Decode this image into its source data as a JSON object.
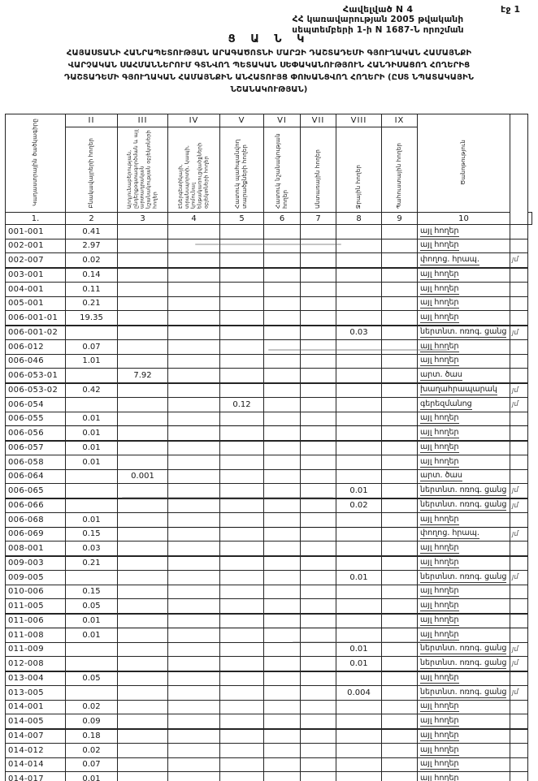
{
  "header": {
    "appendix": "Հավելված N 4",
    "page_no": "էջ 1",
    "decree_line1": "ՀՀ կառավարության 2005 թվականի",
    "decree_line2": "սեպտեմբերի 1-ի N 1687-Ն որոշման",
    "list_word": "Ց Ա Ն Կ",
    "title_line1": "ՀԱՅԱՍՏԱՆԻ ՀԱՆՐԱՊԵՏՈՒԹՅԱՆ ԱՐԱԳԱԾՈՏՆԻ ՄԱՐԶԻ  ԴԱՇՏԱԴԵՄԻ ԳՅՈՒՂԱԿԱՆ ՀԱՄԱՅՆՔԻ",
    "title_line2": "ՎԱՐՉԱԿԱՆ ՍԱՀՄԱՆՆԵՐՈՒՄ  ԳՏՆՎՈՂ  ՊԵՏԱԿԱՆ ՍԵՓԱԿԱՆՈՒԹՅՈՒՆ  ՀԱՆԴԻՍԱՑՈՂ ՀՈՂԵՐԻՑ",
    "title_line3": "ԴԱՇՏԱԴԵՄԻ ԳՅՈՒՂԱԿԱՆ ՀԱՄԱՅՆՔԻՆ ԱՆՀԱՏՈՒՅՑ ՓՈԽԱՆՑՎՈՂ ՀՈՂԵՐԻ  (ԸՍՏ ՆՊԱՏԱԿԱՅԻՆ",
    "title_line4": "ՆՇԱՆԱԿՈՒԹՅԱՆ)"
  },
  "table": {
    "numerals": [
      "II",
      "III",
      "IV",
      "V",
      "VI",
      "VII",
      "VIII",
      "IX"
    ],
    "code_header": "Կադաստրային ծածկագիրը",
    "col_headers": [
      "Բնակավայրերի հողեր",
      "Արդյունաբերության, ընդերքօգտագործման և այլ արտադրական նշանակության օբյեկտների հողեր",
      "Էներգետիկայի, տրանսպորտի, կապի, կոմունալ ենթակառուցվածքների օբյեկտների հողեր",
      "Հատուկ պահպանվող տարածքների հողեր",
      "Հատուկ նշանակության հողեր",
      "Անտառային հողեր",
      "Ջրային հողեր",
      "Պահուստային հողեր"
    ],
    "note_header": "Ծանոթություն",
    "number_row": [
      "1.",
      "2",
      "3",
      "4",
      "5",
      "6",
      "7",
      "8",
      "9",
      "10"
    ],
    "rows": [
      {
        "code": "001-001",
        "v2": "0.41",
        "note": "այլ հողեր"
      },
      {
        "code": "002-001",
        "v2": "2.97",
        "note": "այլ հողեր"
      },
      {
        "code": "002-007",
        "v2": "0.02",
        "note": "փողոց. հրապ.",
        "mark": "յմ"
      },
      {
        "code": "003-001",
        "v2": "0.14",
        "note": "այլ հողեր"
      },
      {
        "code": "004-001",
        "v2": "0.11",
        "note": "այլ հողեր"
      },
      {
        "code": "005-001",
        "v2": "0.21",
        "note": "այլ հողեր"
      },
      {
        "code": "006-001-01",
        "v2": "19.35",
        "note": "այլ հողեր"
      },
      {
        "code": "006-001-02",
        "v8": "0.03",
        "note": "ներտնտ. ոռոգ. ցանց",
        "mark": "յմ"
      },
      {
        "code": "006-012",
        "v2": "0.07",
        "note": "այլ հողեր"
      },
      {
        "code": "006-046",
        "v2": "1.01",
        "note": "այլ հողեր"
      },
      {
        "code": "006-053-01",
        "v3": "7.92",
        "note": "արտ. ծաս"
      },
      {
        "code": "006-053-02",
        "v2": "0.42",
        "note": "խաղահրապարակ",
        "mark": "յմ"
      },
      {
        "code": "006-054",
        "v5": "0.12",
        "note": "գերեզմանոց",
        "mark": "յմ"
      },
      {
        "code": "006-055",
        "v2": "0.01",
        "note": "այլ հողեր"
      },
      {
        "code": "006-056",
        "v2": "0.01",
        "note": "այլ հողեր"
      },
      {
        "code": "006-057",
        "v2": "0.01",
        "note": "այլ հողեր"
      },
      {
        "code": "006-058",
        "v2": "0.01",
        "note": "այլ հողեր"
      },
      {
        "code": "006-064",
        "v3": "0.001",
        "note": "արտ. ծաս"
      },
      {
        "code": "006-065",
        "v8": "0.01",
        "note": "ներտնտ. ոռոգ. ցանց",
        "mark": "յմ"
      },
      {
        "code": "006-066",
        "v8": "0.02",
        "note": "ներտնտ. ոռոգ. ցանց",
        "mark": "յմ"
      },
      {
        "code": "006-068",
        "v2": "0.01",
        "note": "այլ հողեր"
      },
      {
        "code": "006-069",
        "v2": "0.15",
        "note": "փողոց. հրապ.",
        "mark": "յմ"
      },
      {
        "code": "008-001",
        "v2": "0.03",
        "note": "այլ հողեր"
      },
      {
        "code": "009-003",
        "v2": "0.21",
        "note": "այլ հողեր"
      },
      {
        "code": "009-005",
        "v8": "0.01",
        "note": "ներտնտ. ոռոգ. ցանց",
        "mark": "յմ"
      },
      {
        "code": "010-006",
        "v2": "0.15",
        "note": "այլ հողեր"
      },
      {
        "code": "011-005",
        "v2": "0.05",
        "note": "այլ հողեր"
      },
      {
        "code": "011-006",
        "v2": "0.01",
        "note": "այլ հողեր"
      },
      {
        "code": "011-008",
        "v2": "0.01",
        "note": "այլ հողեր"
      },
      {
        "code": "011-009",
        "v8": "0.01",
        "note": "ներտնտ. ոռոգ. ցանց",
        "mark": "յմ"
      },
      {
        "code": "012-008",
        "v8": "0.01",
        "note": "ներտնտ. ոռոգ. ցանց",
        "mark": "յմ"
      },
      {
        "code": "013-004",
        "v2": "0.05",
        "note": "այլ հողեր"
      },
      {
        "code": "013-005",
        "v8": "0.004",
        "note": "ներտնտ. ոռոգ. ցանց",
        "mark": "յմ"
      },
      {
        "code": "014-001",
        "v2": "0.02",
        "note": "այլ հողեր"
      },
      {
        "code": "014-005",
        "v2": "0.09",
        "note": "այլ հողեր"
      },
      {
        "code": "014-007",
        "v2": "0.18",
        "note": "այլ հողեր"
      },
      {
        "code": "014-012",
        "v2": "0.02",
        "note": "այլ հողեր"
      },
      {
        "code": "014-014",
        "v2": "0.07",
        "note": "այլ հողեր"
      },
      {
        "code": "014-017",
        "v2": "0.01",
        "note": "այլ հողեր"
      }
    ]
  }
}
